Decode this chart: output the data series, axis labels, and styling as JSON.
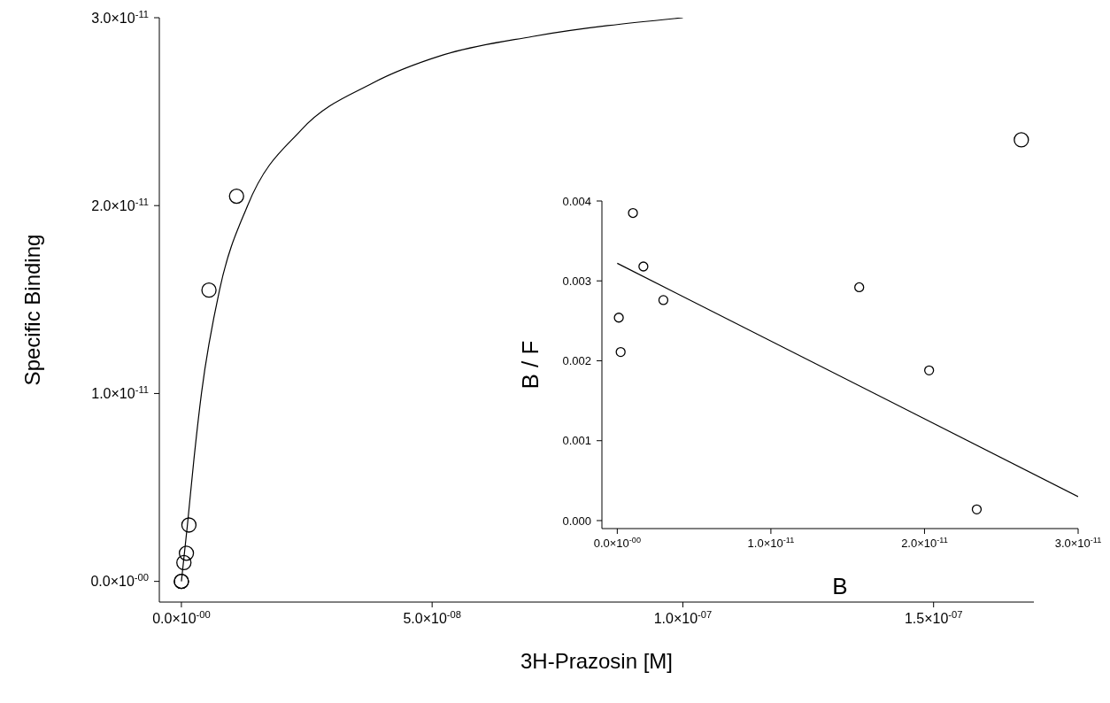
{
  "chart_data": [
    {
      "type": "scatter",
      "xlabel": "3H-Prazosin [M]",
      "ylabel": "Specific Binding",
      "legend": false,
      "grid": false,
      "xlim": [
        -4.4e-09,
        1.7e-07
      ],
      "ylim": [
        -1.1e-12,
        3e-11
      ],
      "xticks": [
        {
          "value": 0,
          "label": "0.0×10$^{-00}$"
        },
        {
          "value": 5e-08,
          "label": "5.0×10$^{-08}$"
        },
        {
          "value": 1e-07,
          "label": "1.0×10$^{-07}$"
        },
        {
          "value": 1.5e-07,
          "label": "1.5×10$^{-07}$"
        }
      ],
      "yticks": [
        {
          "value": 0,
          "label": "0.0×10$^{-00}$"
        },
        {
          "value": 1e-11,
          "label": "1.0×10$^{-11}$"
        },
        {
          "value": 2e-11,
          "label": "2.0×10$^{-11}$"
        },
        {
          "value": 3e-11,
          "label": "3.0×10$^{-11}$"
        }
      ],
      "series": [
        {
          "type": "scatter",
          "color": "#000000",
          "marker": "circle",
          "x": [
            0,
            0,
            5e-10,
            1e-09,
            1.5e-09,
            5.5e-09,
            1.1e-08,
            1.675e-07
          ],
          "values": [
            0,
            0,
            1e-12,
            1.5e-12,
            3e-12,
            1.55e-11,
            2.05e-11,
            2.35e-11
          ]
        },
        {
          "type": "line",
          "color": "#000000",
          "x": [
            0,
            1.2e-09,
            2.5e-09,
            4e-09,
            7.6e-09,
            1.32e-08,
            2.38e-08,
            3.8e-08,
            5.2e-08,
            7e-08,
            1e-07
          ],
          "values": [
            0,
            3e-12,
            6.5e-12,
            1e-11,
            1.55e-11,
            2e-11,
            2.4e-11,
            2.65e-11,
            2.8e-11,
            2.9e-11,
            3e-11
          ]
        }
      ]
    },
    {
      "type": "scatter",
      "xlabel": "B",
      "ylabel": "B / F",
      "legend": false,
      "grid": false,
      "xlim": [
        -1e-12,
        3e-11
      ],
      "ylim": [
        -0.0001,
        0.004
      ],
      "xticks": [
        {
          "value": 0,
          "label": "0.0×10$^{-00}$"
        },
        {
          "value": 1e-11,
          "label": "1.0×10$^{-11}$"
        },
        {
          "value": 2e-11,
          "label": "2.0×10$^{-11}$"
        },
        {
          "value": 3e-11,
          "label": "3.0×10$^{-11}$"
        }
      ],
      "yticks": [
        {
          "value": 0,
          "label": "0.000"
        },
        {
          "value": 0.001,
          "label": "0.001"
        },
        {
          "value": 0.002,
          "label": "0.002"
        },
        {
          "value": 0.003,
          "label": "0.003"
        },
        {
          "value": 0.004,
          "label": "0.004"
        }
      ],
      "series": [
        {
          "type": "scatter",
          "color": "#000000",
          "marker": "circle",
          "x": [
            1e-13,
            2.2e-13,
            1.02e-12,
            1.7e-12,
            3e-12,
            1.575e-11,
            2.03e-11,
            2.34e-11
          ],
          "values": [
            0.00254,
            0.00211,
            0.00385,
            0.00318,
            0.00276,
            0.00292,
            0.00188,
            0.00014
          ]
        },
        {
          "type": "line",
          "color": "#000000",
          "x": [
            0,
            3e-11
          ],
          "values": [
            0.00322,
            0.0003
          ]
        }
      ]
    }
  ]
}
